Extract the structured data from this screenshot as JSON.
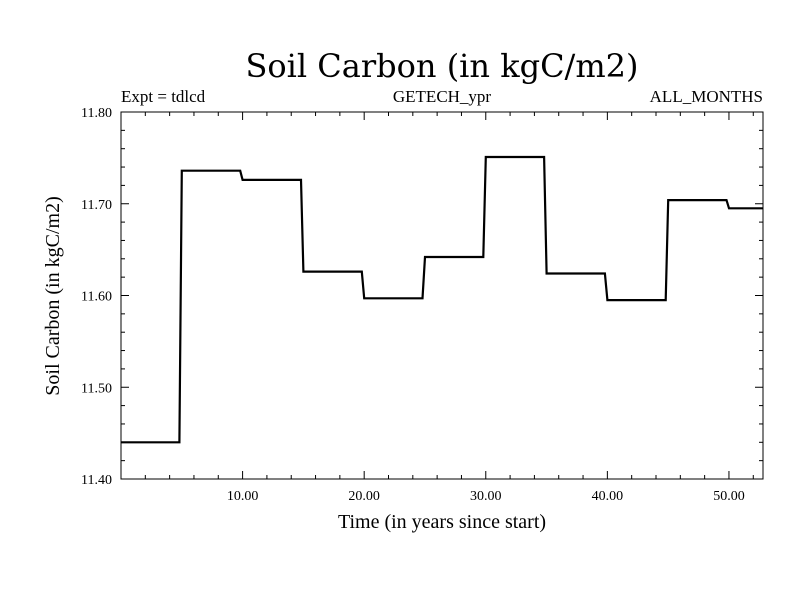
{
  "chart_data": {
    "type": "line",
    "title": "Soil Carbon (in kgC/m2)",
    "subtitle_left": "Expt = tdlcd",
    "subtitle_center": "GETECH_ypr",
    "subtitle_right": "ALL_MONTHS",
    "xlabel": "Time (in years since start)",
    "ylabel": "Soil Carbon (in kgC/m2)",
    "xlim": [
      0,
      52.8
    ],
    "ylim": [
      11.4,
      11.8
    ],
    "xticks": [
      10,
      20,
      30,
      40,
      50
    ],
    "xtick_labels": [
      "10.00",
      "20.00",
      "30.00",
      "40.00",
      "50.00"
    ],
    "yticks": [
      11.4,
      11.5,
      11.6,
      11.7,
      11.8
    ],
    "ytick_labels": [
      "11.40",
      "11.50",
      "11.60",
      "11.70",
      "11.80"
    ],
    "series": [
      {
        "name": "Soil Carbon",
        "x": [
          0,
          4.8,
          5.0,
          9.8,
          10.0,
          14.8,
          15.0,
          19.8,
          20.0,
          24.8,
          25.0,
          29.8,
          30.0,
          34.8,
          35.0,
          39.8,
          40.0,
          44.8,
          45.0,
          49.8,
          50.0,
          52.8
        ],
        "y": [
          11.44,
          11.44,
          11.736,
          11.736,
          11.726,
          11.726,
          11.626,
          11.626,
          11.597,
          11.597,
          11.642,
          11.642,
          11.751,
          11.751,
          11.624,
          11.624,
          11.595,
          11.595,
          11.704,
          11.704,
          11.695,
          11.695
        ]
      }
    ]
  }
}
